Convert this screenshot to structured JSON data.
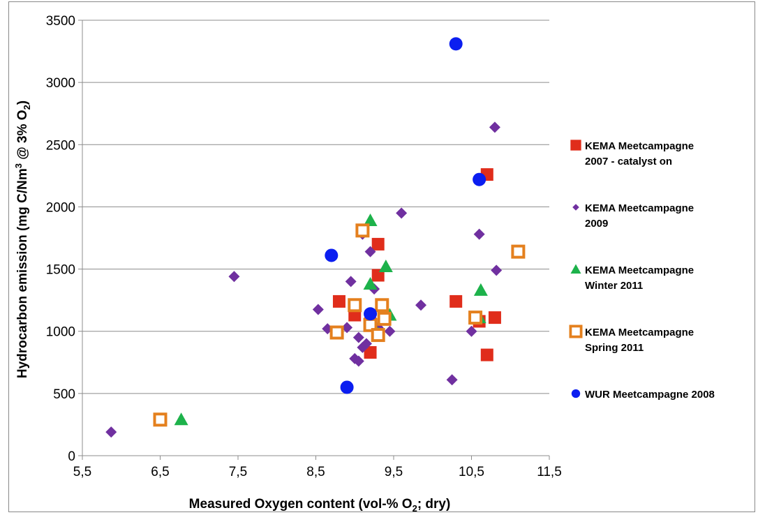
{
  "chart_data": {
    "type": "scatter",
    "title": "",
    "xlabel": "Measured Oxygen content (vol-% O2; dry)",
    "xlabel_parts": [
      "Measured Oxygen content (vol-% O",
      "2",
      "; dry)"
    ],
    "ylabel": "Hydrocarbon emission (mg C/Nm3 @ 3% O2)",
    "ylabel_parts": [
      "Hydrocarbon emission (mg C/Nm",
      "3",
      " @ 3% O",
      "2",
      ")"
    ],
    "xlim": [
      5.5,
      11.5
    ],
    "ylim": [
      0,
      3500
    ],
    "x_ticks": [
      "5,5",
      "6,5",
      "7,5",
      "8,5",
      "9,5",
      "10,5",
      "11,5"
    ],
    "y_ticks": [
      "0",
      "500",
      "1000",
      "1500",
      "2000",
      "2500",
      "3000",
      "3500"
    ],
    "grid": "horizontal",
    "legend_position": "right",
    "series": [
      {
        "name": "KEMA Meetcampagne 2007 - catalyst on",
        "legend_lines": [
          "KEMA Meetcampagne",
          "2007 - catalyst on"
        ],
        "marker": "square",
        "color": "#e02d1b",
        "points": [
          [
            8.8,
            1240
          ],
          [
            9.0,
            1130
          ],
          [
            9.3,
            1700
          ],
          [
            9.3,
            1450
          ],
          [
            9.2,
            830
          ],
          [
            9.2,
            1060
          ],
          [
            10.3,
            1240
          ],
          [
            10.6,
            1080
          ],
          [
            10.7,
            2260
          ],
          [
            10.7,
            810
          ],
          [
            10.8,
            1110
          ]
        ]
      },
      {
        "name": "KEMA Meetcampagne 2009",
        "legend_lines": [
          "KEMA Meetcampagne",
          "2009"
        ],
        "marker": "diamond",
        "color": "#7030a0",
        "points": [
          [
            5.87,
            190
          ],
          [
            7.45,
            1440
          ],
          [
            8.53,
            1175
          ],
          [
            8.65,
            1020
          ],
          [
            8.9,
            1030
          ],
          [
            8.95,
            1400
          ],
          [
            9.0,
            780
          ],
          [
            9.05,
            760
          ],
          [
            9.05,
            950
          ],
          [
            9.1,
            1780
          ],
          [
            9.1,
            870
          ],
          [
            9.15,
            900
          ],
          [
            9.2,
            1640
          ],
          [
            9.25,
            1340
          ],
          [
            9.3,
            1030
          ],
          [
            9.35,
            1190
          ],
          [
            9.45,
            1000
          ],
          [
            9.6,
            1950
          ],
          [
            9.85,
            1210
          ],
          [
            10.25,
            610
          ],
          [
            10.5,
            1000
          ],
          [
            10.6,
            1780
          ],
          [
            10.8,
            2640
          ],
          [
            10.82,
            1490
          ]
        ]
      },
      {
        "name": "KEMA Meetcampagne Winter 2011",
        "legend_lines": [
          "KEMA Meetcampagne",
          "Winter 2011"
        ],
        "marker": "triangle",
        "color": "#1db24b",
        "points": [
          [
            6.77,
            290
          ],
          [
            9.2,
            1890
          ],
          [
            9.2,
            1380
          ],
          [
            9.3,
            980
          ],
          [
            9.4,
            1520
          ],
          [
            9.45,
            1130
          ],
          [
            10.6,
            1110
          ],
          [
            10.62,
            1330
          ]
        ]
      },
      {
        "name": "KEMA Meetcampagne Spring 2011",
        "legend_lines": [
          "KEMA Meetcampagne",
          "Spring 2011"
        ],
        "marker": "open-square",
        "color": "#e4801e",
        "points": [
          [
            6.5,
            290
          ],
          [
            8.77,
            990
          ],
          [
            9.0,
            1210
          ],
          [
            9.1,
            1810
          ],
          [
            9.2,
            1050
          ],
          [
            9.3,
            970
          ],
          [
            9.35,
            1210
          ],
          [
            9.38,
            1100
          ],
          [
            10.55,
            1110
          ],
          [
            11.1,
            1640
          ]
        ]
      },
      {
        "name": "WUR Meetcampagne 2008",
        "legend_lines": [
          "WUR Meetcampagne 2008"
        ],
        "marker": "circle",
        "color": "#0b1ef0",
        "points": [
          [
            8.7,
            1610
          ],
          [
            8.9,
            550
          ],
          [
            9.2,
            1140
          ],
          [
            10.3,
            3310
          ],
          [
            10.6,
            2220
          ]
        ]
      }
    ]
  }
}
